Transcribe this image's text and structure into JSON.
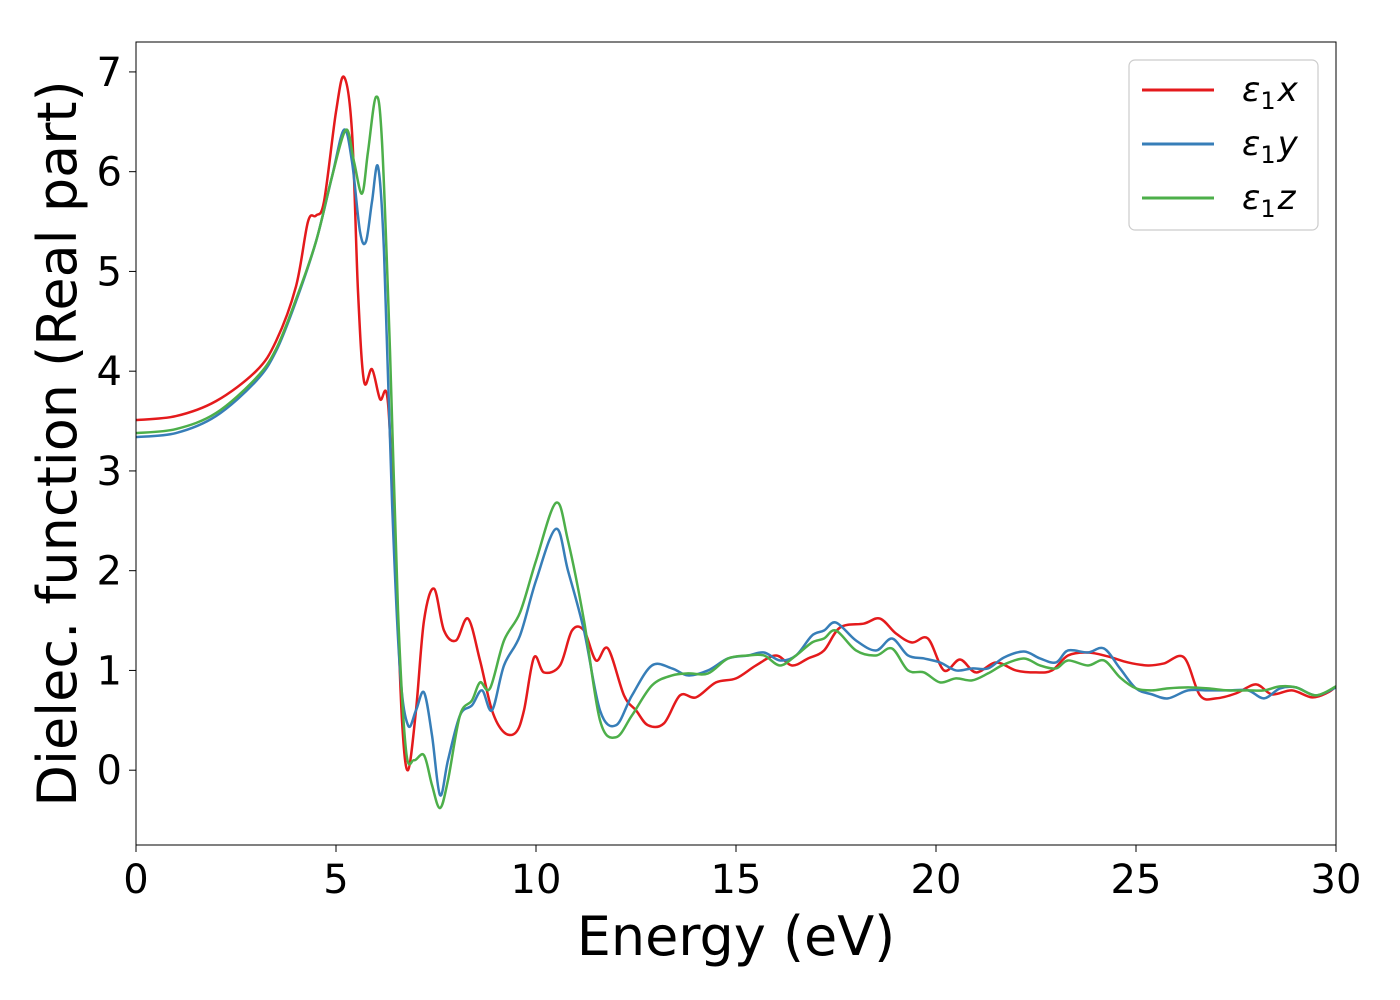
{
  "chart_data": {
    "type": "line",
    "title": "",
    "xlabel": "Energy (eV)",
    "ylabel": "Dielec. function (Real part)",
    "xlim": [
      0,
      30
    ],
    "ylim": [
      -0.75,
      7.3
    ],
    "xticks": [
      "0",
      "5",
      "10",
      "15",
      "20",
      "25",
      "30"
    ],
    "xtick_values": [
      0,
      5,
      10,
      15,
      20,
      25,
      30
    ],
    "yticks": [
      "0",
      "1",
      "2",
      "3",
      "4",
      "5",
      "6",
      "7"
    ],
    "ytick_values": [
      0,
      1,
      2,
      3,
      4,
      5,
      6,
      7
    ],
    "grid": false,
    "legend_position": "top-right",
    "series": [
      {
        "name": "ε1x",
        "legend_symbol": "ε",
        "legend_sub": "1",
        "legend_var": "x",
        "color": "#e41a1c",
        "points": [
          [
            0,
            3.51
          ],
          [
            1,
            3.55
          ],
          [
            2,
            3.7
          ],
          [
            3,
            4.0
          ],
          [
            3.5,
            4.3
          ],
          [
            4,
            4.85
          ],
          [
            4.3,
            5.5
          ],
          [
            4.5,
            5.56
          ],
          [
            4.7,
            5.7
          ],
          [
            5.0,
            6.6
          ],
          [
            5.2,
            6.95
          ],
          [
            5.4,
            6.4
          ],
          [
            5.55,
            4.8
          ],
          [
            5.7,
            3.9
          ],
          [
            5.9,
            4.02
          ],
          [
            6.1,
            3.72
          ],
          [
            6.3,
            3.68
          ],
          [
            6.5,
            2.0
          ],
          [
            6.65,
            0.5
          ],
          [
            6.8,
            0.0
          ],
          [
            7.0,
            0.6
          ],
          [
            7.2,
            1.5
          ],
          [
            7.45,
            1.82
          ],
          [
            7.7,
            1.4
          ],
          [
            8.0,
            1.3
          ],
          [
            8.3,
            1.52
          ],
          [
            8.6,
            1.1
          ],
          [
            8.9,
            0.6
          ],
          [
            9.2,
            0.38
          ],
          [
            9.5,
            0.38
          ],
          [
            9.7,
            0.6
          ],
          [
            9.95,
            1.13
          ],
          [
            10.2,
            0.98
          ],
          [
            10.6,
            1.05
          ],
          [
            10.9,
            1.4
          ],
          [
            11.2,
            1.4
          ],
          [
            11.5,
            1.1
          ],
          [
            11.8,
            1.22
          ],
          [
            12.2,
            0.75
          ],
          [
            12.5,
            0.6
          ],
          [
            12.8,
            0.45
          ],
          [
            13.2,
            0.47
          ],
          [
            13.6,
            0.75
          ],
          [
            14.0,
            0.73
          ],
          [
            14.5,
            0.88
          ],
          [
            15.0,
            0.92
          ],
          [
            15.5,
            1.05
          ],
          [
            16.0,
            1.15
          ],
          [
            16.4,
            1.05
          ],
          [
            16.8,
            1.12
          ],
          [
            17.2,
            1.2
          ],
          [
            17.6,
            1.43
          ],
          [
            18.2,
            1.47
          ],
          [
            18.6,
            1.52
          ],
          [
            19.0,
            1.37
          ],
          [
            19.4,
            1.28
          ],
          [
            19.8,
            1.32
          ],
          [
            20.2,
            1.0
          ],
          [
            20.6,
            1.11
          ],
          [
            21.0,
            0.98
          ],
          [
            21.5,
            1.08
          ],
          [
            22.0,
            1.0
          ],
          [
            22.5,
            0.98
          ],
          [
            22.9,
            1.0
          ],
          [
            23.3,
            1.15
          ],
          [
            23.8,
            1.18
          ],
          [
            24.3,
            1.14
          ],
          [
            24.8,
            1.08
          ],
          [
            25.3,
            1.05
          ],
          [
            25.7,
            1.07
          ],
          [
            26.2,
            1.13
          ],
          [
            26.6,
            0.75
          ],
          [
            27.0,
            0.72
          ],
          [
            27.5,
            0.77
          ],
          [
            28.0,
            0.86
          ],
          [
            28.4,
            0.76
          ],
          [
            28.9,
            0.8
          ],
          [
            29.4,
            0.73
          ],
          [
            29.8,
            0.78
          ],
          [
            30,
            0.84
          ]
        ]
      },
      {
        "name": "ε1y",
        "legend_symbol": "ε",
        "legend_sub": "1",
        "legend_var": "y",
        "color": "#377eb8",
        "points": [
          [
            0,
            3.34
          ],
          [
            1,
            3.38
          ],
          [
            2,
            3.55
          ],
          [
            3,
            3.9
          ],
          [
            3.5,
            4.2
          ],
          [
            4,
            4.7
          ],
          [
            4.5,
            5.3
          ],
          [
            4.9,
            5.95
          ],
          [
            5.2,
            6.42
          ],
          [
            5.4,
            6.1
          ],
          [
            5.6,
            5.4
          ],
          [
            5.75,
            5.3
          ],
          [
            5.9,
            5.7
          ],
          [
            6.05,
            6.05
          ],
          [
            6.2,
            5.2
          ],
          [
            6.4,
            2.7
          ],
          [
            6.6,
            1.0
          ],
          [
            6.8,
            0.45
          ],
          [
            7.0,
            0.6
          ],
          [
            7.2,
            0.78
          ],
          [
            7.4,
            0.35
          ],
          [
            7.6,
            -0.25
          ],
          [
            7.8,
            0.1
          ],
          [
            8.1,
            0.55
          ],
          [
            8.4,
            0.65
          ],
          [
            8.65,
            0.8
          ],
          [
            8.9,
            0.6
          ],
          [
            9.2,
            1.05
          ],
          [
            9.6,
            1.35
          ],
          [
            10.0,
            1.9
          ],
          [
            10.5,
            2.42
          ],
          [
            10.8,
            2.0
          ],
          [
            11.2,
            1.4
          ],
          [
            11.6,
            0.6
          ],
          [
            12.0,
            0.45
          ],
          [
            12.4,
            0.75
          ],
          [
            12.9,
            1.05
          ],
          [
            13.4,
            1.02
          ],
          [
            13.8,
            0.95
          ],
          [
            14.3,
            1.0
          ],
          [
            14.8,
            1.12
          ],
          [
            15.3,
            1.15
          ],
          [
            15.7,
            1.18
          ],
          [
            16.1,
            1.1
          ],
          [
            16.5,
            1.15
          ],
          [
            16.9,
            1.35
          ],
          [
            17.2,
            1.4
          ],
          [
            17.5,
            1.48
          ],
          [
            18.0,
            1.3
          ],
          [
            18.5,
            1.2
          ],
          [
            18.9,
            1.32
          ],
          [
            19.3,
            1.15
          ],
          [
            19.7,
            1.12
          ],
          [
            20.1,
            1.08
          ],
          [
            20.5,
            1.0
          ],
          [
            20.9,
            1.02
          ],
          [
            21.3,
            1.02
          ],
          [
            21.7,
            1.13
          ],
          [
            22.2,
            1.19
          ],
          [
            22.6,
            1.12
          ],
          [
            23.0,
            1.08
          ],
          [
            23.3,
            1.2
          ],
          [
            23.8,
            1.18
          ],
          [
            24.2,
            1.22
          ],
          [
            24.6,
            1.02
          ],
          [
            25.0,
            0.82
          ],
          [
            25.4,
            0.76
          ],
          [
            25.8,
            0.72
          ],
          [
            26.3,
            0.8
          ],
          [
            26.8,
            0.8
          ],
          [
            27.3,
            0.8
          ],
          [
            27.8,
            0.8
          ],
          [
            28.2,
            0.72
          ],
          [
            28.6,
            0.82
          ],
          [
            29.0,
            0.83
          ],
          [
            29.5,
            0.75
          ],
          [
            30,
            0.83
          ]
        ]
      },
      {
        "name": "ε1z",
        "legend_symbol": "ε",
        "legend_sub": "1",
        "legend_var": "z",
        "color": "#4daf4a",
        "points": [
          [
            0,
            3.38
          ],
          [
            1,
            3.42
          ],
          [
            2,
            3.58
          ],
          [
            3,
            3.93
          ],
          [
            3.5,
            4.22
          ],
          [
            4,
            4.72
          ],
          [
            4.5,
            5.3
          ],
          [
            4.9,
            5.95
          ],
          [
            5.25,
            6.42
          ],
          [
            5.45,
            6.1
          ],
          [
            5.65,
            5.78
          ],
          [
            5.8,
            6.2
          ],
          [
            6.0,
            6.75
          ],
          [
            6.15,
            6.3
          ],
          [
            6.35,
            4.2
          ],
          [
            6.55,
            1.6
          ],
          [
            6.75,
            0.2
          ],
          [
            6.95,
            0.1
          ],
          [
            7.2,
            0.15
          ],
          [
            7.4,
            -0.15
          ],
          [
            7.6,
            -0.38
          ],
          [
            7.8,
            -0.1
          ],
          [
            8.1,
            0.55
          ],
          [
            8.4,
            0.7
          ],
          [
            8.6,
            0.88
          ],
          [
            8.85,
            0.82
          ],
          [
            9.2,
            1.3
          ],
          [
            9.6,
            1.58
          ],
          [
            10.0,
            2.1
          ],
          [
            10.5,
            2.68
          ],
          [
            10.8,
            2.3
          ],
          [
            11.2,
            1.5
          ],
          [
            11.6,
            0.5
          ],
          [
            12.0,
            0.33
          ],
          [
            12.4,
            0.55
          ],
          [
            12.9,
            0.85
          ],
          [
            13.4,
            0.95
          ],
          [
            13.8,
            0.97
          ],
          [
            14.3,
            0.97
          ],
          [
            14.8,
            1.12
          ],
          [
            15.3,
            1.15
          ],
          [
            15.7,
            1.15
          ],
          [
            16.1,
            1.05
          ],
          [
            16.5,
            1.15
          ],
          [
            16.9,
            1.28
          ],
          [
            17.2,
            1.32
          ],
          [
            17.5,
            1.4
          ],
          [
            18.0,
            1.2
          ],
          [
            18.5,
            1.15
          ],
          [
            18.9,
            1.22
          ],
          [
            19.3,
            1.0
          ],
          [
            19.7,
            0.98
          ],
          [
            20.1,
            0.88
          ],
          [
            20.5,
            0.92
          ],
          [
            20.9,
            0.9
          ],
          [
            21.3,
            0.97
          ],
          [
            21.7,
            1.06
          ],
          [
            22.2,
            1.12
          ],
          [
            22.6,
            1.05
          ],
          [
            23.0,
            1.02
          ],
          [
            23.3,
            1.1
          ],
          [
            23.8,
            1.05
          ],
          [
            24.2,
            1.1
          ],
          [
            24.6,
            0.93
          ],
          [
            25.0,
            0.82
          ],
          [
            25.4,
            0.8
          ],
          [
            25.8,
            0.82
          ],
          [
            26.3,
            0.83
          ],
          [
            26.8,
            0.82
          ],
          [
            27.3,
            0.8
          ],
          [
            27.8,
            0.8
          ],
          [
            28.2,
            0.8
          ],
          [
            28.6,
            0.84
          ],
          [
            29.0,
            0.83
          ],
          [
            29.5,
            0.75
          ],
          [
            30,
            0.84
          ]
        ]
      }
    ]
  }
}
